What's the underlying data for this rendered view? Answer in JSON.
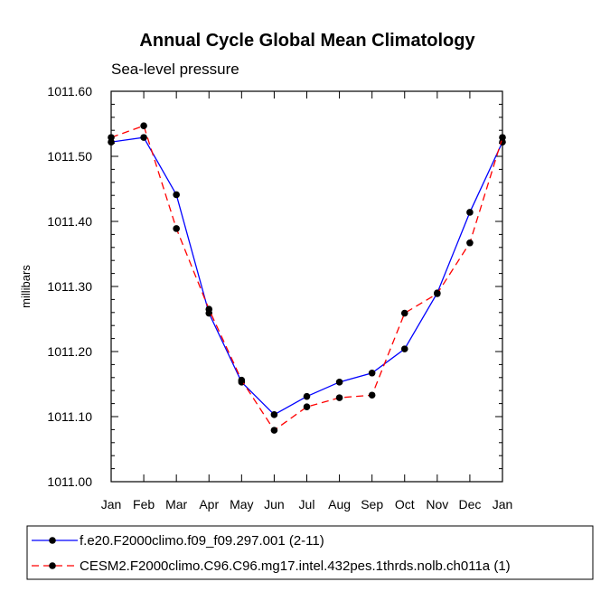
{
  "chart_data": {
    "type": "line",
    "title": "Annual Cycle Global Mean Climatology",
    "subtitle": "Sea-level pressure",
    "xlabel": "",
    "ylabel": "millibars",
    "categories": [
      "Jan",
      "Feb",
      "Mar",
      "Apr",
      "May",
      "Jun",
      "Jul",
      "Aug",
      "Sep",
      "Oct",
      "Nov",
      "Dec",
      "Jan"
    ],
    "ylim": [
      1011.0,
      1011.6
    ],
    "yticks": [
      1011.0,
      1011.1,
      1011.2,
      1011.3,
      1011.4,
      1011.5,
      1011.6
    ],
    "ytick_labels": [
      "1011.00",
      "1011.10",
      "1011.20",
      "1011.30",
      "1011.40",
      "1011.50",
      "1011.60"
    ],
    "grid": false,
    "legend_position": "bottom",
    "series": [
      {
        "name": "f.e20.F2000climo.f09_f09.297.001 (2-11)",
        "color": "#0000ff",
        "dash": "solid",
        "values": [
          1011.522,
          1011.529,
          1011.441,
          1011.259,
          1011.153,
          1011.103,
          1011.131,
          1011.153,
          1011.167,
          1011.204,
          1011.29,
          1011.414,
          1011.522
        ]
      },
      {
        "name": "CESM2.F2000climo.C96.C96.mg17.intel.432pes.1thrds.nolb.ch011a (1)",
        "color": "#ff0000",
        "dash": "dashed",
        "values": [
          1011.529,
          1011.547,
          1011.389,
          1011.265,
          1011.156,
          1011.079,
          1011.115,
          1011.129,
          1011.133,
          1011.259,
          1011.289,
          1011.367,
          1011.529
        ]
      }
    ]
  }
}
